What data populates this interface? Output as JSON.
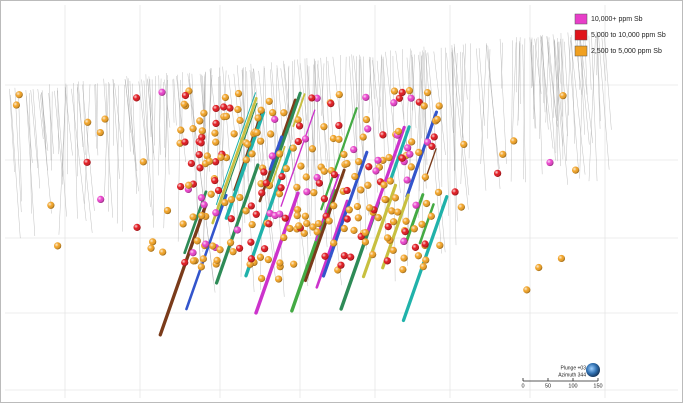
{
  "legend": {
    "entries": [
      {
        "label": "10,000+ ppm Sb",
        "color": "#e83ec9"
      },
      {
        "label": "5,000 to 10,000 ppm Sb",
        "color": "#e0141b"
      },
      {
        "label": "2,500 to 5,000 ppm Sb",
        "color": "#f0a020"
      }
    ]
  },
  "view": {
    "plunge": "Plunge +03",
    "azimuth": "Azimuth 344"
  },
  "scale_bar": {
    "ticks": [
      0,
      50,
      100,
      150
    ]
  }
}
